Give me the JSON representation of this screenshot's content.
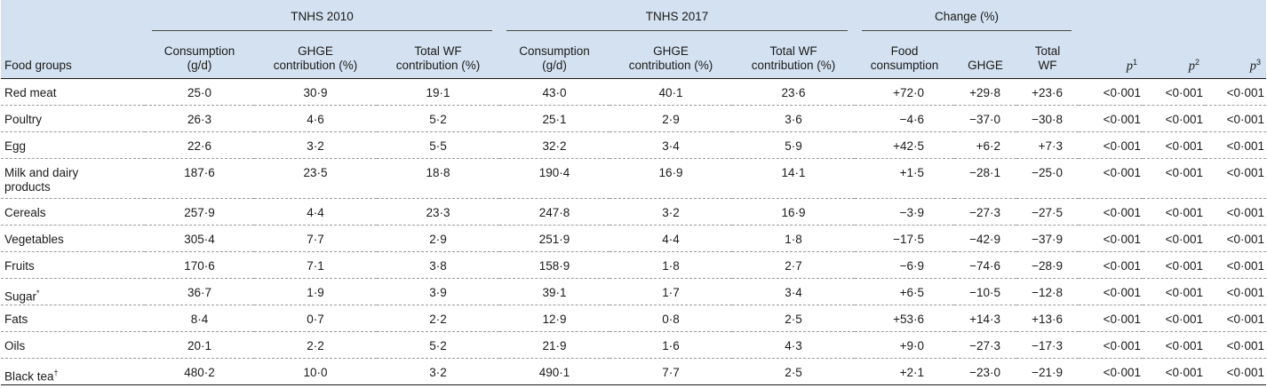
{
  "header": {
    "groups": {
      "tnhs2010": "TNHS 2010",
      "tnhs2017": "TNHS 2017",
      "change": "Change (%)"
    },
    "columns": {
      "food_groups": "Food groups",
      "consumption_l1": "Consumption",
      "consumption_l2": "(g/d)",
      "ghge_l1": "GHGE",
      "ghge_l2": "contribution (%)",
      "wf_l1": "Total WF",
      "wf_l2": "contribution (%)",
      "food_cons_l1": "Food",
      "food_cons_l2": "consumption",
      "ghge_change": "GHGE",
      "total_wf_l1": "Total",
      "total_wf_l2": "WF",
      "p": "p",
      "p1_sup": "1",
      "p2_sup": "2",
      "p3_sup": "3"
    }
  },
  "rows": [
    {
      "food": "Red meat",
      "mark": "",
      "c2010": "25·0",
      "g2010": "30·9",
      "w2010": "19·1",
      "c2017": "43·0",
      "g2017": "40·1",
      "w2017": "23·6",
      "dc": "+72·0",
      "dg": "+29·8",
      "dw": "+23·6",
      "p1": "<0·001",
      "p2": "<0·001",
      "p3": "<0·001"
    },
    {
      "food": "Poultry",
      "mark": "",
      "c2010": "26·3",
      "g2010": "4·6",
      "w2010": "5·2",
      "c2017": "25·1",
      "g2017": "2·9",
      "w2017": "3·6",
      "dc": "−4·6",
      "dg": "−37·0",
      "dw": "−30·8",
      "p1": "<0·001",
      "p2": "<0·001",
      "p3": "<0·001"
    },
    {
      "food": "Egg",
      "mark": "",
      "c2010": "22·6",
      "g2010": "3·2",
      "w2010": "5·5",
      "c2017": "32·2",
      "g2017": "3·4",
      "w2017": "5·9",
      "dc": "+42·5",
      "dg": "+6·2",
      "dw": "+7·3",
      "p1": "<0·001",
      "p2": "<0·001",
      "p3": "<0·001"
    },
    {
      "food": "Milk and dairy",
      "food2": "products",
      "mark": "",
      "c2010": "187·6",
      "g2010": "23·5",
      "w2010": "18·8",
      "c2017": "190·4",
      "g2017": "16·9",
      "w2017": "14·1",
      "dc": "+1·5",
      "dg": "−28·1",
      "dw": "−25·0",
      "p1": "<0·001",
      "p2": "<0·001",
      "p3": "<0·001"
    },
    {
      "food": "Cereals",
      "mark": "",
      "c2010": "257·9",
      "g2010": "4·4",
      "w2010": "23·3",
      "c2017": "247·8",
      "g2017": "3·2",
      "w2017": "16·9",
      "dc": "−3·9",
      "dg": "−27·3",
      "dw": "−27·5",
      "p1": "<0·001",
      "p2": "<0·001",
      "p3": "<0·001"
    },
    {
      "food": "Vegetables",
      "mark": "",
      "c2010": "305·4",
      "g2010": "7·7",
      "w2010": "2·9",
      "c2017": "251·9",
      "g2017": "4·4",
      "w2017": "1·8",
      "dc": "−17·5",
      "dg": "−42·9",
      "dw": "−37·9",
      "p1": "<0·001",
      "p2": "<0·001",
      "p3": "<0·001"
    },
    {
      "food": "Fruits",
      "mark": "",
      "c2010": "170·6",
      "g2010": "7·1",
      "w2010": "3·8",
      "c2017": "158·9",
      "g2017": "1·8",
      "w2017": "2·7",
      "dc": "−6·9",
      "dg": "−74·6",
      "dw": "−28·9",
      "p1": "<0·001",
      "p2": "<0·001",
      "p3": "<0·001"
    },
    {
      "food": "Sugar",
      "mark": "*",
      "c2010": "36·7",
      "g2010": "1·9",
      "w2010": "3·9",
      "c2017": "39·1",
      "g2017": "1·7",
      "w2017": "3·4",
      "dc": "+6·5",
      "dg": "−10·5",
      "dw": "−12·8",
      "p1": "<0·001",
      "p2": "<0·001",
      "p3": "<0·001"
    },
    {
      "food": "Fats",
      "mark": "",
      "c2010": "8·4",
      "g2010": "0·7",
      "w2010": "2·2",
      "c2017": "12·9",
      "g2017": "0·8",
      "w2017": "2·5",
      "dc": "+53·6",
      "dg": "+14·3",
      "dw": "+13·6",
      "p1": "<0·001",
      "p2": "<0·001",
      "p3": "<0·001"
    },
    {
      "food": "Oils",
      "mark": "",
      "c2010": "20·1",
      "g2010": "2·2",
      "w2010": "5·2",
      "c2017": "21·9",
      "g2017": "1·6",
      "w2017": "4·3",
      "dc": "+9·0",
      "dg": "−27·3",
      "dw": "−17·3",
      "p1": "<0·001",
      "p2": "<0·001",
      "p3": "<0·001"
    },
    {
      "food": "Black tea",
      "mark": "†",
      "c2010": "480·2",
      "g2010": "10·0",
      "w2010": "3·2",
      "c2017": "490·1",
      "g2017": "7·7",
      "w2017": "2·5",
      "dc": "+2·1",
      "dg": "−23·0",
      "dw": "−21·9",
      "p1": "<0·001",
      "p2": "<0·001",
      "p3": "<0·001"
    }
  ]
}
